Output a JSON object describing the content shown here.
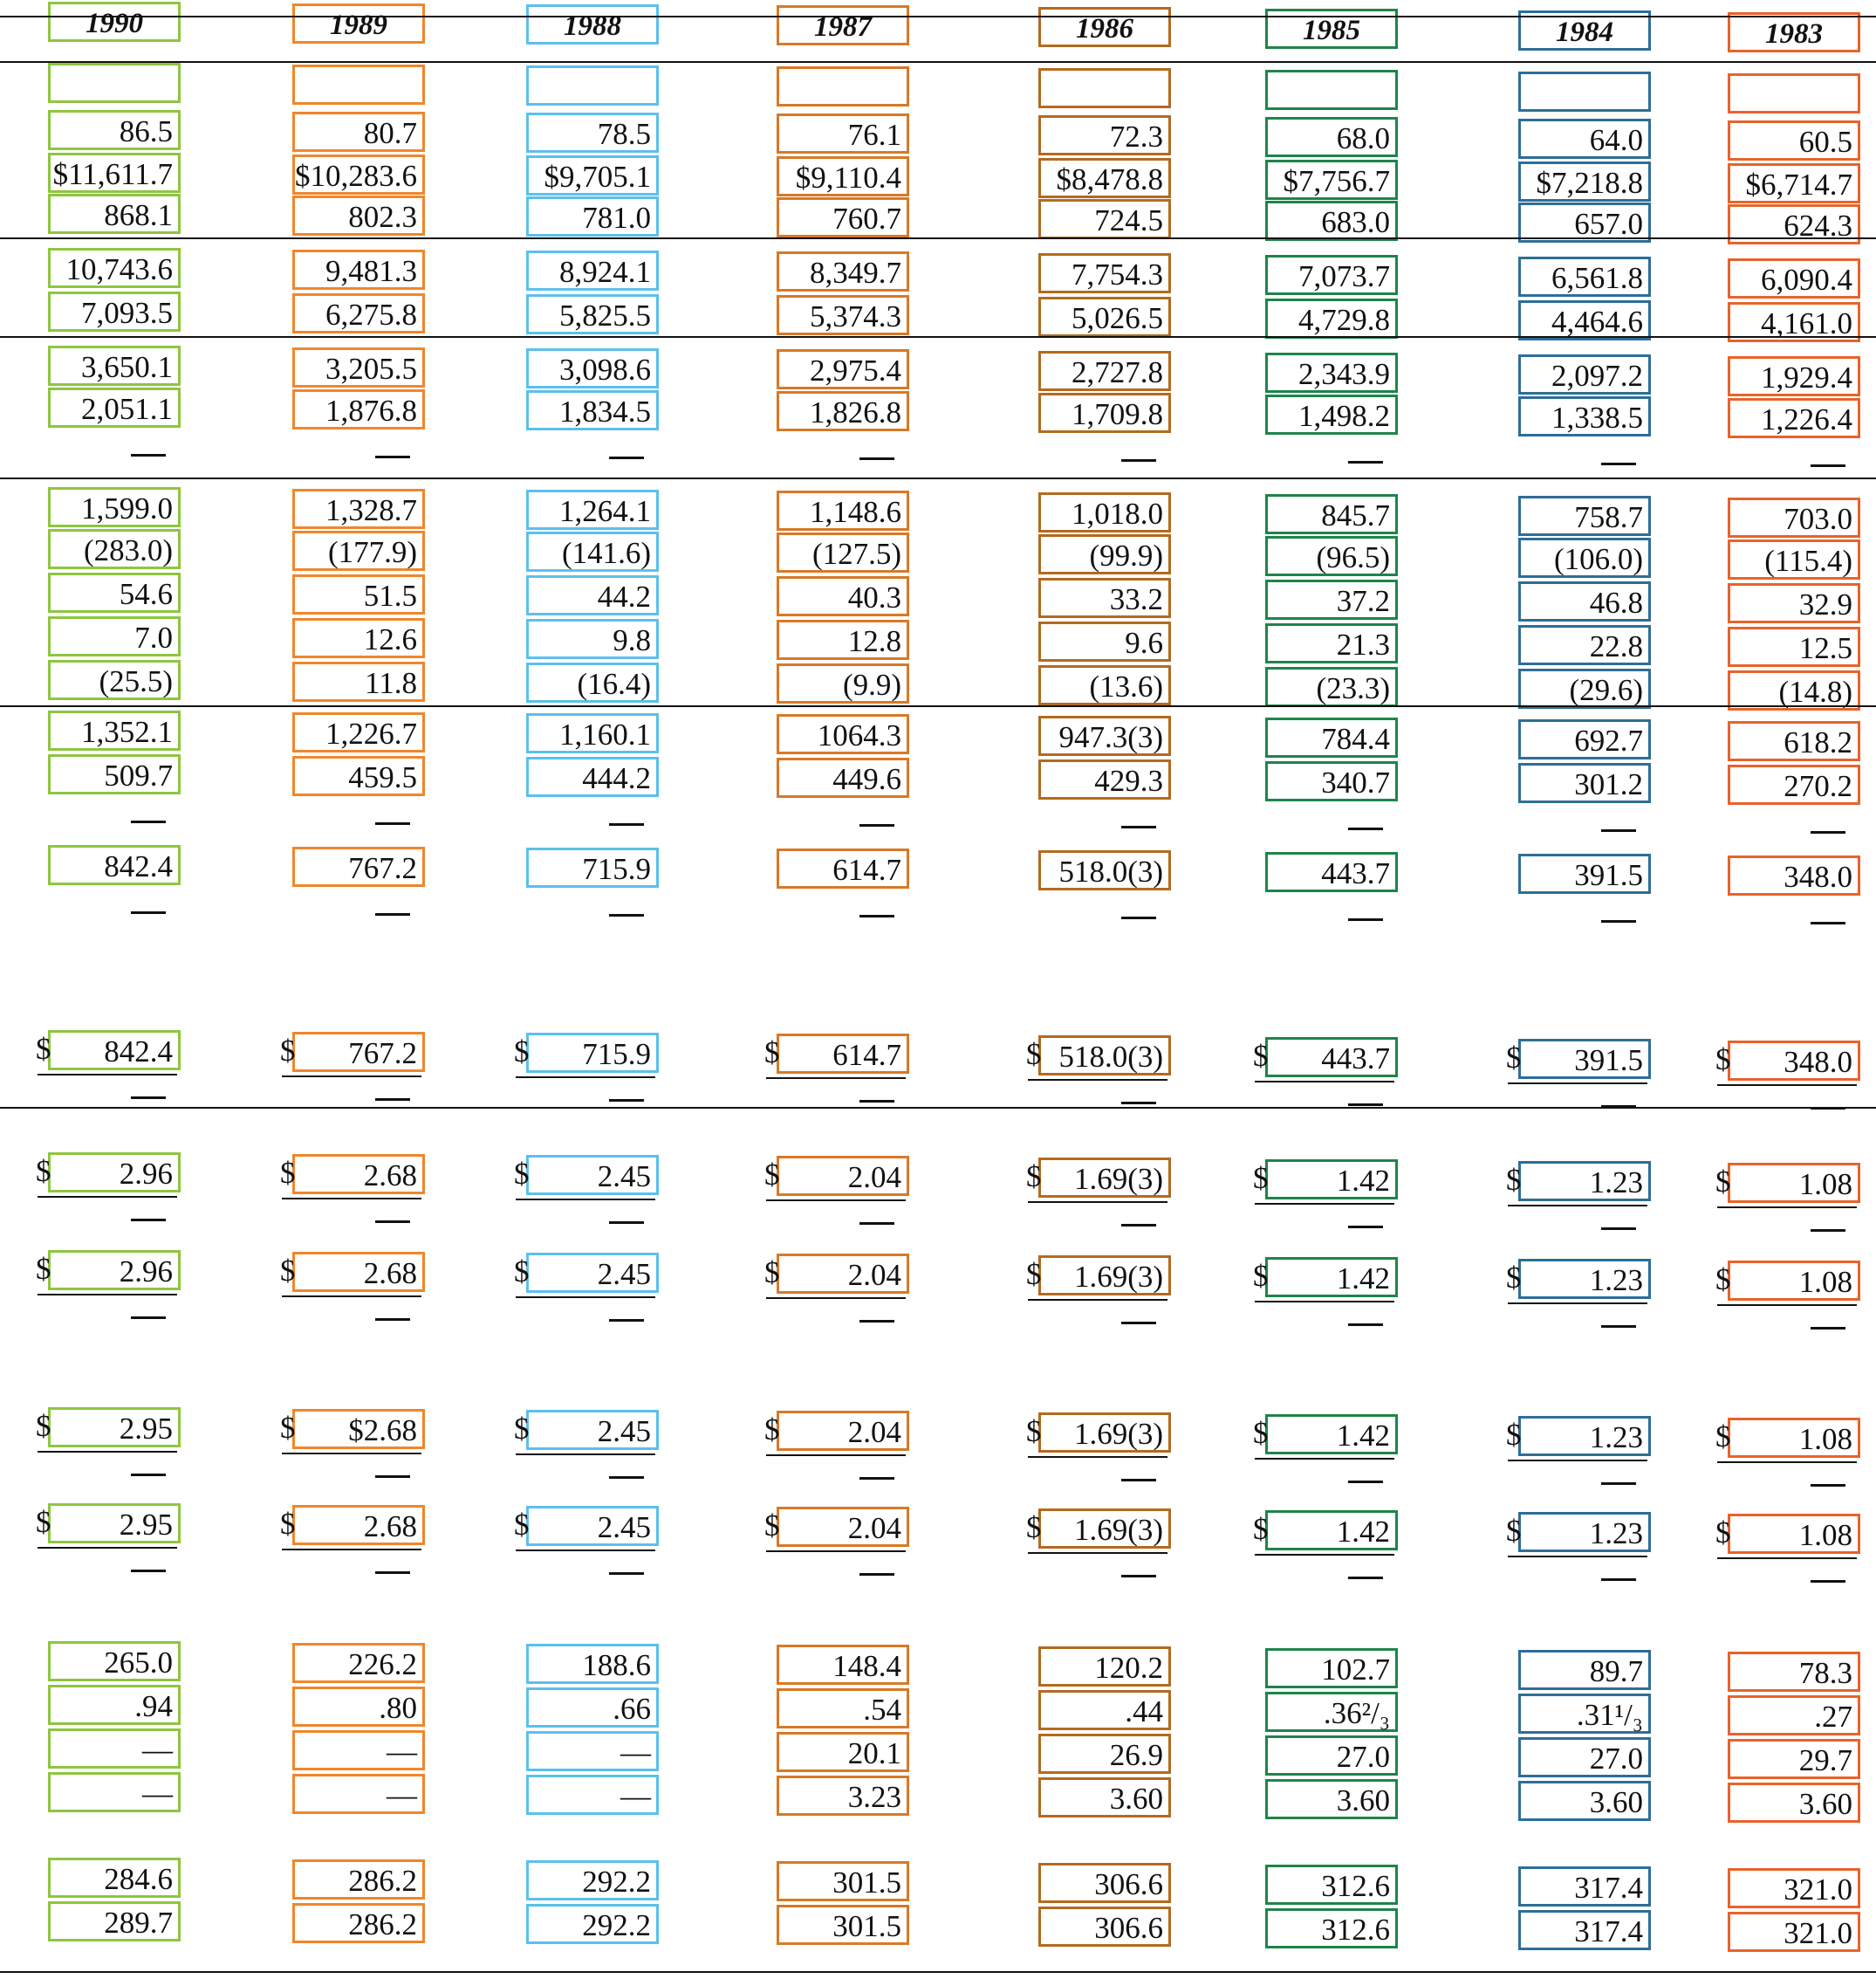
{
  "colors": [
    "#8dc63f",
    "#f0862c",
    "#5bc0eb",
    "#d97926",
    "#b36b1f",
    "#1e8449",
    "#2e6e96",
    "#e8632b"
  ],
  "columns": [
    {
      "year": "1990",
      "values": [
        "86.5",
        "$11,611.7",
        "868.1",
        "10,743.6",
        "7,093.5",
        "3,650.1",
        "2,051.1",
        "1,599.0",
        "(283.0)",
        "54.6",
        "7.0",
        "(25.5)",
        "1,352.1",
        "509.7",
        "842.4",
        "842.4",
        "2.96",
        "2.96",
        "2.95",
        "2.95",
        "265.0",
        ".94",
        "—",
        "—",
        "284.6",
        "289.7"
      ]
    },
    {
      "year": "1989",
      "values": [
        "80.7",
        "$10,283.6",
        "802.3",
        "9,481.3",
        "6,275.8",
        "3,205.5",
        "1,876.8",
        "1,328.7",
        "(177.9)",
        "51.5",
        "12.6",
        "11.8",
        "1,226.7",
        "459.5",
        "767.2",
        "767.2",
        "2.68",
        "2.68",
        "$2.68",
        "2.68",
        "226.2",
        ".80",
        "—",
        "—",
        "286.2",
        "286.2"
      ]
    },
    {
      "year": "1988",
      "values": [
        "78.5",
        "$9,705.1",
        "781.0",
        "8,924.1",
        "5,825.5",
        "3,098.6",
        "1,834.5",
        "1,264.1",
        "(141.6)",
        "44.2",
        "9.8",
        "(16.4)",
        "1,160.1",
        "444.2",
        "715.9",
        "715.9",
        "2.45",
        "2.45",
        "2.45",
        "2.45",
        "188.6",
        ".66",
        "—",
        "—",
        "292.2",
        "292.2"
      ]
    },
    {
      "year": "1987",
      "values": [
        "76.1",
        "$9,110.4",
        "760.7",
        "8,349.7",
        "5,374.3",
        "2,975.4",
        "1,826.8",
        "1,148.6",
        "(127.5)",
        "40.3",
        "12.8",
        "(9.9)",
        "1064.3",
        "449.6",
        "614.7",
        "614.7",
        "2.04",
        "2.04",
        "2.04",
        "2.04",
        "148.4",
        ".54",
        "20.1",
        "3.23",
        "301.5",
        "301.5"
      ]
    },
    {
      "year": "1986",
      "values": [
        "72.3",
        "$8,478.8",
        "724.5",
        "7,754.3",
        "5,026.5",
        "2,727.8",
        "1,709.8",
        "1,018.0",
        "(99.9)",
        "33.2",
        "9.6",
        "(13.6)",
        "947.3(3)",
        "429.3",
        "518.0(3)",
        "518.0(3)",
        "1.69(3)",
        "1.69(3)",
        "1.69(3)",
        "1.69(3)",
        "120.2",
        ".44",
        "26.9",
        "3.60",
        "306.6",
        "306.6"
      ]
    },
    {
      "year": "1985",
      "values": [
        "68.0",
        "$7,756.7",
        "683.0",
        "7,073.7",
        "4,729.8",
        "2,343.9",
        "1,498.2",
        "845.7",
        "(96.5)",
        "37.2",
        "21.3",
        "(23.3)",
        "784.4",
        "340.7",
        "443.7",
        "443.7",
        "1.42",
        "1.42",
        "1.42",
        "1.42",
        "102.7",
        ".36²/₃",
        "27.0",
        "3.60",
        "312.6",
        "312.6"
      ]
    },
    {
      "year": "1984",
      "values": [
        "64.0",
        "$7,218.8",
        "657.0",
        "6,561.8",
        "4,464.6",
        "2,097.2",
        "1,338.5",
        "758.7",
        "(106.0)",
        "46.8",
        "22.8",
        "(29.6)",
        "692.7",
        "301.2",
        "391.5",
        "391.5",
        "1.23",
        "1.23",
        "1.23",
        "1.23",
        "89.7",
        ".31¹/₃",
        "27.0",
        "3.60",
        "317.4",
        "317.4"
      ]
    },
    {
      "year": "1983",
      "values": [
        "60.5",
        "$6,714.7",
        "624.3",
        "6,090.4",
        "4,161.0",
        "1,929.4",
        "1,226.4",
        "703.0",
        "(115.4)",
        "32.9",
        "12.5",
        "(14.8)",
        "618.2",
        "270.2",
        "348.0",
        "348.0",
        "1.08",
        "1.08",
        "1.08",
        "1.08",
        "78.3",
        ".27",
        "29.7",
        "3.60",
        "321.0",
        "321.0"
      ]
    }
  ],
  "dollar_sign": "$"
}
